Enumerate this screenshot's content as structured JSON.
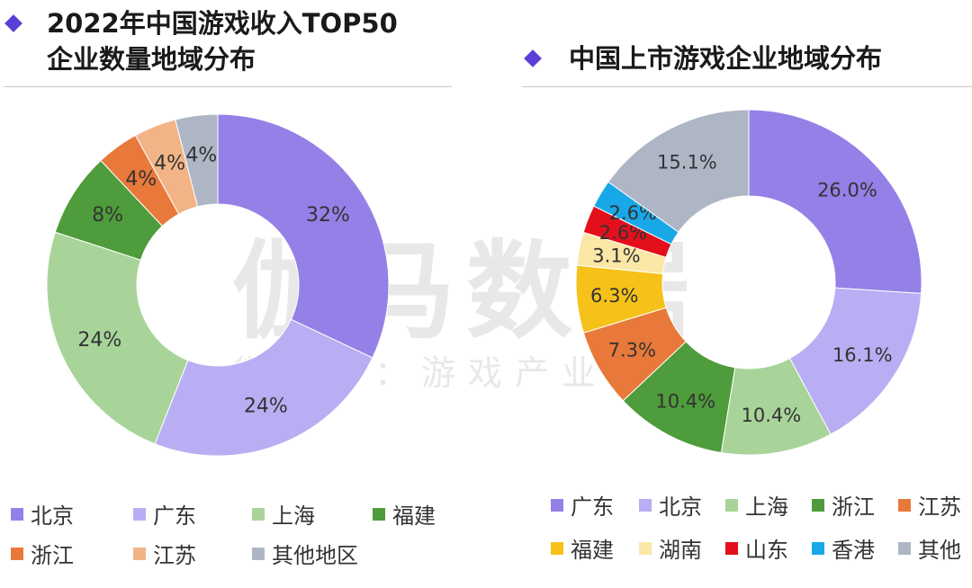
{
  "watermark": {
    "main": "伽马数据",
    "sub": "微信号：游戏产业报告"
  },
  "chart_data": [
    {
      "type": "pie",
      "title_line1": "2022年中国游戏收入TOP50",
      "title_line2": "企业数量地域分布",
      "categories": [
        "北京",
        "广东",
        "上海",
        "福建",
        "浙江",
        "江苏",
        "其他地区"
      ],
      "values": [
        32,
        24,
        24,
        8,
        4,
        4,
        4
      ],
      "labels": [
        "32%",
        "24%",
        "24%",
        "8%",
        "4%",
        "4%",
        "4%"
      ],
      "colors": [
        "#9580e8",
        "#b9aef3",
        "#a8d49a",
        "#4e9c3b",
        "#e8793a",
        "#f2b487",
        "#aeb6c6"
      ],
      "legend_position": "bottom"
    },
    {
      "type": "pie",
      "title": "中国上市游戏企业地域分布",
      "categories": [
        "广东",
        "北京",
        "上海",
        "浙江",
        "江苏",
        "福建",
        "湖南",
        "山东",
        "香港",
        "其他"
      ],
      "values": [
        26.0,
        16.1,
        10.4,
        10.4,
        7.3,
        6.3,
        3.1,
        2.6,
        2.6,
        15.1
      ],
      "labels": [
        "26.0%",
        "16.1%",
        "10.4%",
        "10.4%",
        "7.3%",
        "6.3%",
        "3.1%",
        "2.6%",
        "2.6%",
        "15.1%"
      ],
      "colors": [
        "#9580e8",
        "#b9aef3",
        "#a8d49a",
        "#4e9c3b",
        "#e8793a",
        "#f6c21a",
        "#fbe7a6",
        "#e3101c",
        "#18a8e8",
        "#aeb6c6"
      ],
      "legend_position": "bottom"
    }
  ]
}
